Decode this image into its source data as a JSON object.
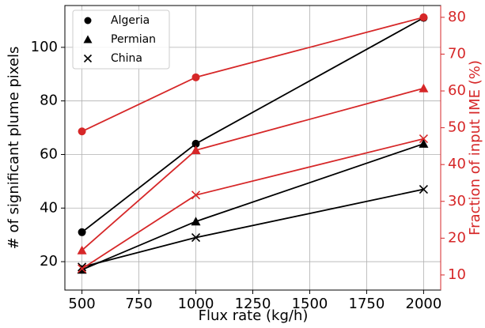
{
  "chart_data": {
    "type": "line",
    "xlabel": "Flux rate (kg/h)",
    "ylabel": "# of significant plume pixels",
    "y2label": "Fraction of input IME (%)",
    "y2color": "#d62728",
    "x": [
      500,
      1000,
      2000
    ],
    "xlim": [
      425,
      2075
    ],
    "xticks": [
      500,
      750,
      1000,
      1250,
      1500,
      1750,
      2000
    ],
    "ylim": [
      9.4,
      115.6
    ],
    "yticks": [
      20,
      40,
      60,
      80,
      100
    ],
    "y2lim": [
      5.9,
      83.2
    ],
    "y2ticks": [
      10,
      20,
      30,
      40,
      50,
      60,
      70,
      80
    ],
    "grid": true,
    "legend": "upper left",
    "series": [
      {
        "name": "Algeria",
        "marker": "circle",
        "color": "#000000",
        "values": [
          31,
          64,
          111
        ]
      },
      {
        "name": "Permian",
        "marker": "triangle",
        "color": "#000000",
        "values": [
          17,
          35,
          64
        ]
      },
      {
        "name": "China",
        "marker": "x",
        "color": "#000000",
        "values": [
          18,
          29,
          47
        ]
      },
      {
        "marker": "circle",
        "color": "#d62728",
        "axis": "y2",
        "values": [
          49,
          63.7,
          80
        ]
      },
      {
        "marker": "triangle",
        "color": "#d62728",
        "axis": "y2",
        "values": [
          16.7,
          43.9,
          60.7
        ]
      },
      {
        "marker": "x",
        "color": "#d62728",
        "axis": "y2",
        "values": [
          11.7,
          31.7,
          47
        ]
      }
    ]
  }
}
